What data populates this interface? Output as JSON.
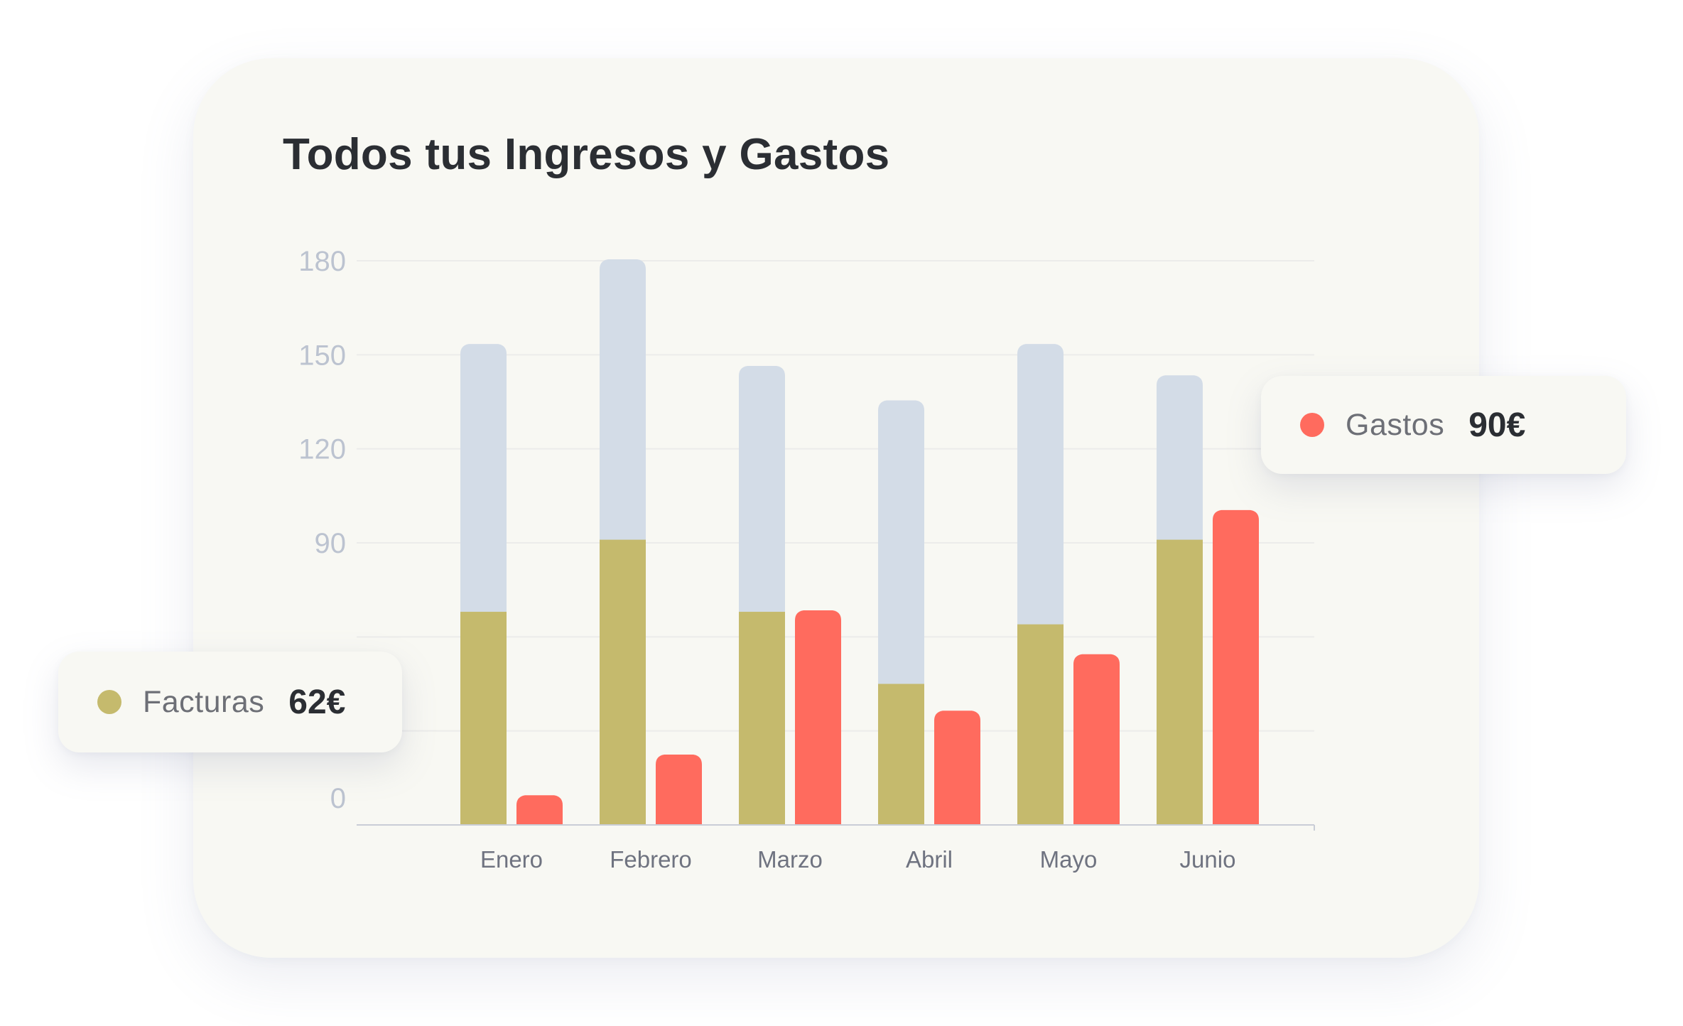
{
  "chart_data": {
    "type": "bar",
    "title": "Todos tus Ingresos y Gastos",
    "xlabel": "",
    "ylabel": "",
    "categories": [
      "Enero",
      "Febrero",
      "Marzo",
      "Abril",
      "Mayo",
      "Junio"
    ],
    "y_ticks": [
      "0",
      "90",
      "120",
      "150",
      "180"
    ],
    "ylim": [
      0,
      180
    ],
    "grid": true,
    "series": [
      {
        "key": "facturas",
        "color": "#c5ba6d",
        "values": [
          68,
          91,
          68,
          45,
          64,
          91
        ]
      },
      {
        "key": "total",
        "color": "#d3dce7",
        "values": [
          153,
          180,
          146,
          135,
          153,
          143
        ]
      },
      {
        "key": "gastos",
        "color": "#ff6b5e",
        "values": [
          9,
          22,
          68,
          36,
          54,
          100
        ]
      }
    ]
  },
  "legend": {
    "gastos": {
      "label": "Gastos",
      "value": "90€",
      "color": "#ff6b5e"
    },
    "facturas": {
      "label": "Facturas",
      "value": "62€",
      "color": "#c5ba6d"
    }
  }
}
